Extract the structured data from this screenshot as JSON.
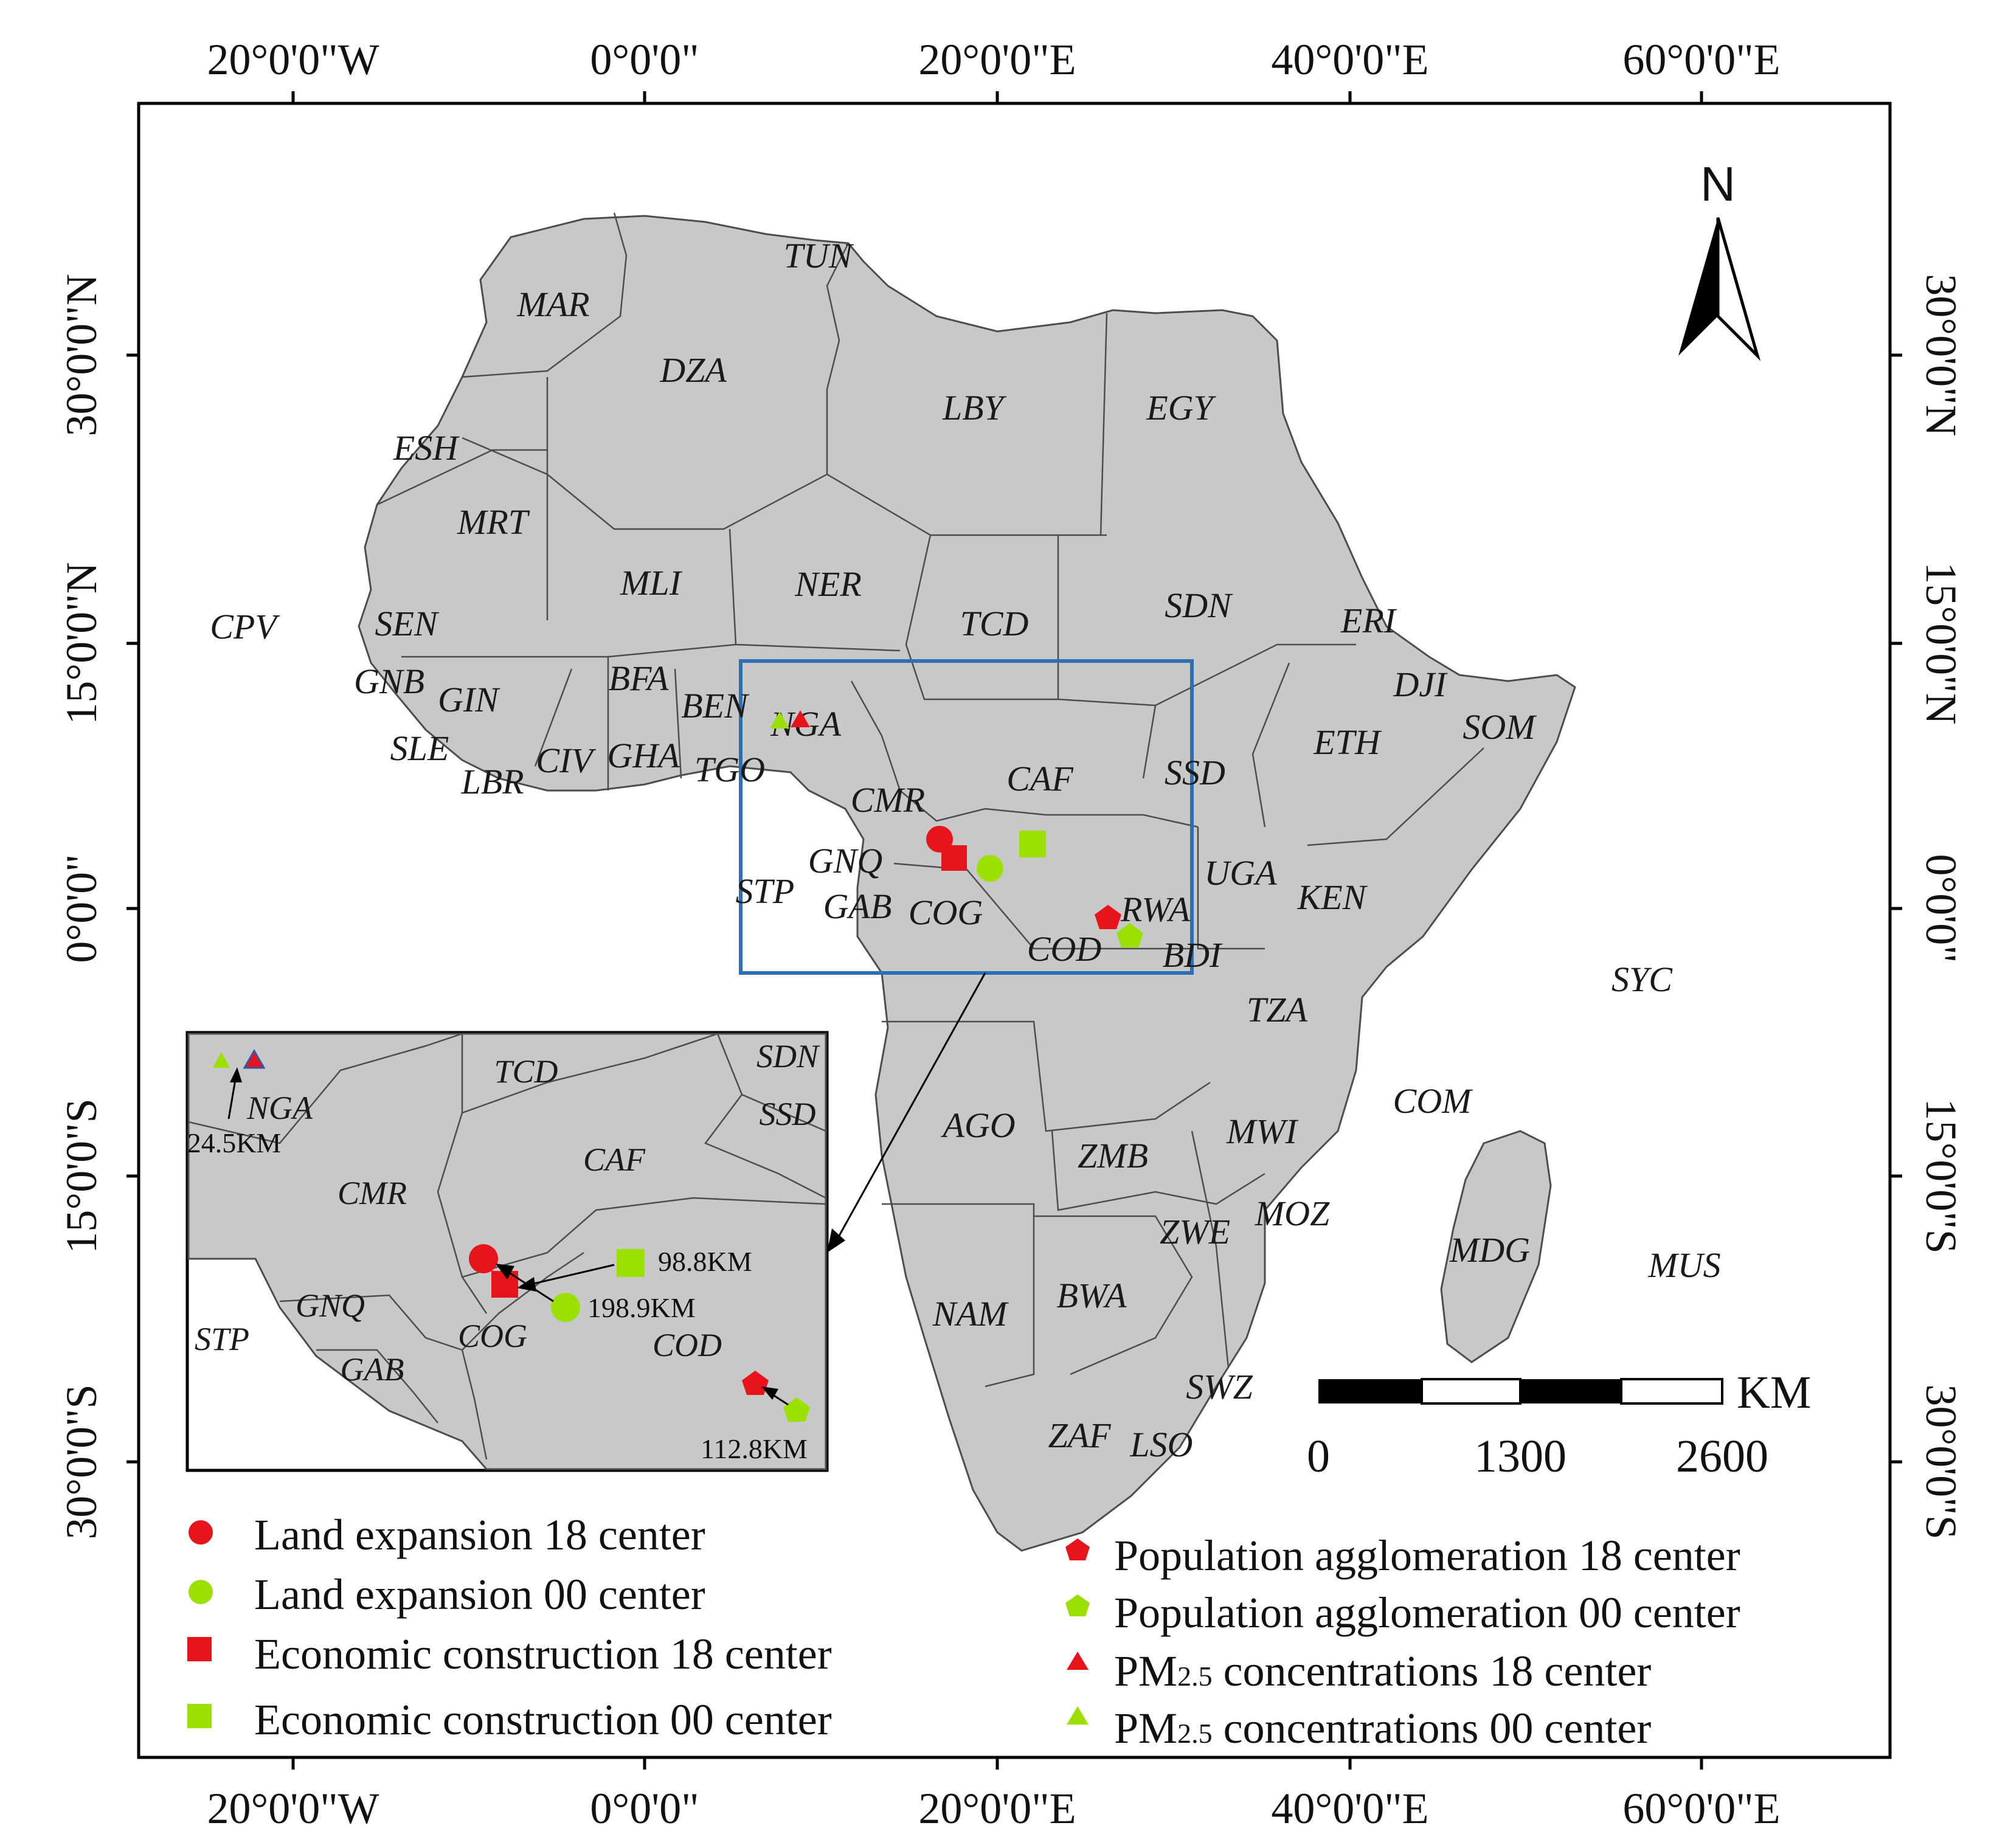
{
  "axes": {
    "top": [
      "20°0'0\"W",
      "0°0'0\"",
      "20°0'0\"E",
      "40°0'0\"E",
      "60°0'0\"E"
    ],
    "bottom": [
      "20°0'0\"W",
      "0°0'0\"",
      "20°0'0\"E",
      "40°0'0\"E",
      "60°0'0\"E"
    ],
    "left": [
      "30°0'0\"N",
      "15°0'0\"N",
      "0°0'0\"",
      "15°0'0\"S",
      "30°0'0\"S"
    ],
    "right": [
      "30°0'0\"N",
      "15°0'0\"N",
      "0°0'0\"",
      "15°0'0\"S",
      "30°0'0\"S"
    ]
  },
  "north_arrow": {
    "label": "N"
  },
  "countries": [
    "TUN",
    "MAR",
    "DZA",
    "LBY",
    "EGY",
    "ESH",
    "MRT",
    "MLI",
    "NER",
    "TCD",
    "SDN",
    "ERI",
    "DJI",
    "SOM",
    "ETH",
    "SSD",
    "CAF",
    "CMR",
    "NGA",
    "BEN",
    "TGO",
    "GHA",
    "CIV",
    "BFA",
    "GIN",
    "GNB",
    "SEN",
    "SLE",
    "LBR",
    "CPV",
    "GNQ",
    "STP",
    "GAB",
    "COG",
    "COD",
    "RWA",
    "BDI",
    "UGA",
    "KEN",
    "TZA",
    "SYC",
    "COM",
    "AGO",
    "ZMB",
    "MWI",
    "MOZ",
    "ZWE",
    "NAM",
    "BWA",
    "MDG",
    "MUS",
    "SWZ",
    "ZAF",
    "LSO"
  ],
  "inset": {
    "countries": [
      "TCD",
      "SDN",
      "SSD",
      "NGA",
      "CMR",
      "CAF",
      "GNQ",
      "STP",
      "GAB",
      "COG",
      "COD"
    ],
    "distances": [
      "24.5KM",
      "98.8KM",
      "198.9KM",
      "112.8KM"
    ]
  },
  "scale_bar": {
    "unit": "KM",
    "ticks": [
      "0",
      "1300",
      "2600"
    ]
  },
  "legend": {
    "left": [
      {
        "label": "Land expansion 18 center",
        "shape": "circle",
        "color": "#e8141b"
      },
      {
        "label": "Land expansion 00 center",
        "shape": "circle",
        "color": "#9be000"
      },
      {
        "label": "Economic construction 18 center",
        "shape": "square",
        "color": "#e8141b"
      },
      {
        "label": "Economic construction 00 center",
        "shape": "square",
        "color": "#9be000"
      }
    ],
    "right": [
      {
        "label": "Population agglomeration 18 center",
        "shape": "pentagon",
        "color": "#e8141b"
      },
      {
        "label": "Population agglomeration 00 center",
        "shape": "pentagon",
        "color": "#9be000"
      },
      {
        "label_prefix": "PM",
        "label_sub": "2.5",
        "label_suffix": " concentrations 18 center",
        "shape": "triangle",
        "color": "#e8141b"
      },
      {
        "label_prefix": "PM",
        "label_sub": "2.5",
        "label_suffix": " concentrations 00 center",
        "shape": "triangle",
        "color": "#9be000"
      }
    ]
  },
  "colors": {
    "land": "#c8c8c8",
    "frame": "#000000",
    "highlight_box": "#2e6fb4",
    "red_marker": "#e8141b",
    "green_marker": "#9be000"
  }
}
